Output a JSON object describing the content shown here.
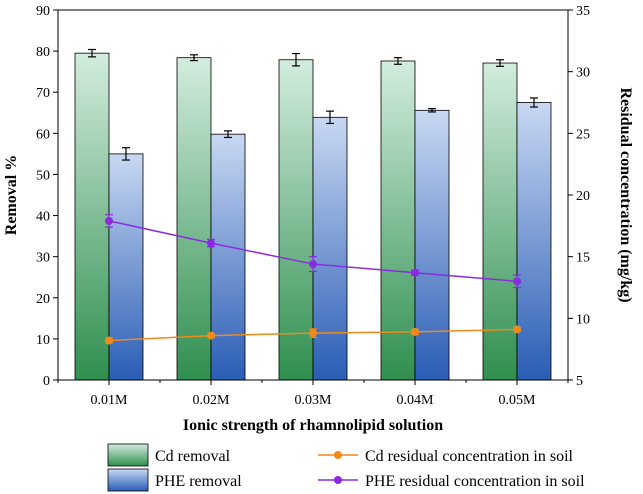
{
  "chart_data": {
    "type": "bar",
    "title": "",
    "xlabel": "Ionic strength of rhamnolipid solution",
    "ylabel": "Removal %",
    "y2label": "Residual concentration (mg/kg)",
    "categories": [
      "0.01M",
      "0.02M",
      "0.03M",
      "0.04M",
      "0.05M"
    ],
    "ylim": [
      0,
      90
    ],
    "y_ticks": [
      "0",
      "10",
      "20",
      "30",
      "40",
      "50",
      "60",
      "70",
      "80",
      "90"
    ],
    "y2lim": [
      5,
      35
    ],
    "y2_ticks": [
      "5",
      "10",
      "15",
      "20",
      "25",
      "30",
      "35"
    ],
    "bar_series": [
      {
        "name": "Cd removal",
        "values": [
          79.5,
          78.4,
          77.9,
          77.6,
          77.1
        ],
        "errors": [
          0.9,
          0.7,
          1.5,
          0.8,
          0.8
        ],
        "color_top": "#d3ecde",
        "color_bottom": "#2f8f4f"
      },
      {
        "name": "PHE removal",
        "values": [
          55.0,
          59.8,
          63.9,
          65.6,
          67.5
        ],
        "errors": [
          1.5,
          0.8,
          1.5,
          0.4,
          1.1
        ],
        "color_top": "#c8d8f2",
        "color_bottom": "#2a5db5"
      }
    ],
    "line_series": [
      {
        "name": "Cd residual concentration in soil",
        "axis": "right",
        "values": [
          8.2,
          8.6,
          8.8,
          8.9,
          9.1
        ],
        "errors": [
          0.2,
          0.15,
          0.35,
          0.2,
          0.15
        ],
        "color": "#f08a1a"
      },
      {
        "name": "PHE residual concentration in soil",
        "axis": "right",
        "values": [
          17.9,
          16.1,
          14.4,
          13.7,
          13.0
        ],
        "errors": [
          0.5,
          0.3,
          0.6,
          0.2,
          0.5
        ],
        "color": "#8a2be2"
      }
    ],
    "legend_position": "bottom"
  }
}
